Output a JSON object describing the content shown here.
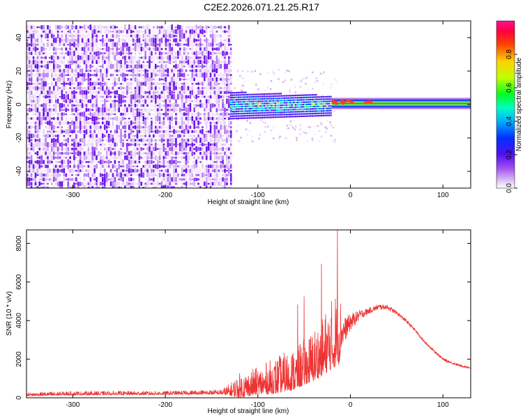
{
  "title": "C2E2.2026.071.21.25.R17",
  "chart_data": [
    {
      "type": "heatmap",
      "name": "spectrogram",
      "xlabel": "Height of straight line (km)",
      "ylabel": "Frequency (Hz)",
      "xlim": [
        -350,
        130
      ],
      "ylim": [
        -50,
        50
      ],
      "xticks": [
        -300,
        -200,
        -100,
        0,
        100
      ],
      "yticks": [
        -40,
        -20,
        0,
        20,
        40
      ],
      "colorbar": {
        "label": "Normalized spectral amplitude",
        "range": [
          0,
          1
        ],
        "ticks": [
          0.0,
          0.2,
          0.4,
          0.6,
          0.8
        ]
      },
      "regions": [
        {
          "x": [
            -350,
            -130
          ],
          "y": [
            -50,
            48
          ],
          "description": "broadband noise",
          "amplitude": 0.15
        },
        {
          "x": [
            -130,
            -20
          ],
          "y": [
            -8,
            9
          ],
          "description": "signal onset",
          "amplitude": 0.45
        },
        {
          "x": [
            -20,
            130
          ],
          "y": [
            -3,
            4
          ],
          "description": "carrier line",
          "amplitude": 0.9
        }
      ],
      "colors": [
        "#ffffff",
        "#e6d0f7",
        "#b070f0",
        "#7a1bee",
        "#2a2aff",
        "#00c8ff",
        "#22ee66",
        "#f0f020",
        "#ff8000",
        "#ff0000",
        "#ff1080"
      ]
    },
    {
      "type": "line",
      "name": "snr",
      "xlabel": "Height of straight line (km)",
      "ylabel": "SNR (10 * v/v)",
      "xlim": [
        -350,
        130
      ],
      "ylim": [
        0,
        8700
      ],
      "xticks": [
        -300,
        -200,
        -100,
        0,
        100
      ],
      "yticks": [
        0,
        2000,
        4000,
        6000,
        8000
      ],
      "color": "#ee3333",
      "envelope": {
        "x": [
          -350,
          -300,
          -200,
          -140,
          -130,
          -120,
          -100,
          -80,
          -60,
          -40,
          -30,
          -20,
          -15,
          -12,
          -10,
          0,
          10,
          20,
          30,
          40,
          50,
          60,
          70,
          80,
          100,
          110,
          120,
          130
        ],
        "base": [
          150,
          200,
          220,
          260,
          300,
          400,
          600,
          800,
          1100,
          1700,
          2100,
          2600,
          2900,
          3100,
          3300,
          3900,
          4300,
          4500,
          4700,
          4700,
          4400,
          4000,
          3500,
          2900,
          2000,
          1800,
          1650,
          1550
        ],
        "spread": [
          120,
          130,
          120,
          160,
          400,
          800,
          900,
          1200,
          1400,
          1700,
          2000,
          2300,
          2600,
          2800,
          1500,
          900,
          500,
          300,
          280,
          250,
          200,
          180,
          150,
          130,
          120,
          110,
          100,
          100
        ]
      },
      "peak": {
        "x": -14,
        "y": 8700
      }
    }
  ]
}
